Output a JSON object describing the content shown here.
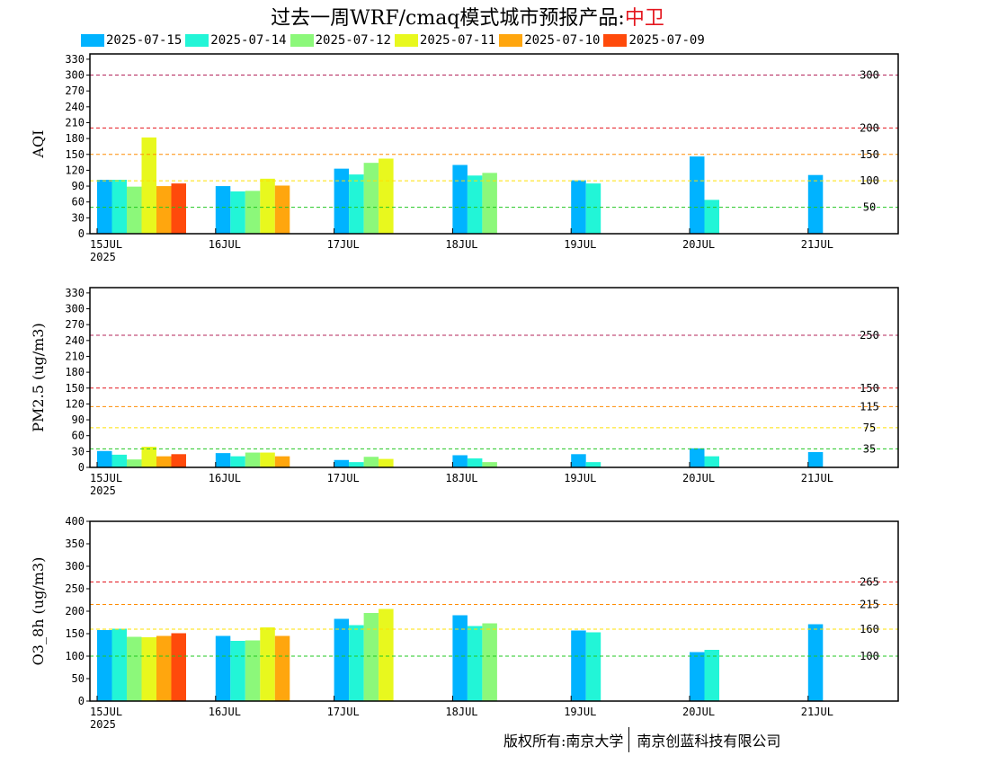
{
  "title": {
    "prefix": "过去一周WRF/cmaq模式城市预报产品:",
    "city": "中卫",
    "city_color": "#e4161e"
  },
  "legend": [
    {
      "name": "2025-07-15",
      "color": "#00b3ff"
    },
    {
      "name": "2025-07-14",
      "color": "#22f5d7"
    },
    {
      "name": "2025-07-12",
      "color": "#8cf87a"
    },
    {
      "name": "2025-07-11",
      "color": "#e8f81e"
    },
    {
      "name": "2025-07-10",
      "color": "#ffa60e"
    },
    {
      "name": "2025-07-09",
      "color": "#ff4a0b"
    }
  ],
  "chart_data": [
    {
      "type": "bar",
      "ylabel": "AQI",
      "ylim": [
        0,
        340
      ],
      "yticks": [
        0,
        30,
        60,
        90,
        120,
        150,
        180,
        210,
        240,
        270,
        300,
        330
      ],
      "categories": [
        "15JUL",
        "16JUL",
        "17JUL",
        "18JUL",
        "19JUL",
        "20JUL",
        "21JUL"
      ],
      "first_category_year": "2025",
      "series": [
        {
          "name": "2025-07-15",
          "values": [
            102,
            90,
            123,
            130,
            101,
            146,
            111
          ]
        },
        {
          "name": "2025-07-14",
          "values": [
            102,
            80,
            112,
            110,
            95,
            64,
            null
          ]
        },
        {
          "name": "2025-07-12",
          "values": [
            89,
            81,
            134,
            115,
            null,
            null,
            null
          ]
        },
        {
          "name": "2025-07-11",
          "values": [
            182,
            104,
            142,
            null,
            null,
            null,
            null
          ]
        },
        {
          "name": "2025-07-10",
          "values": [
            90,
            91,
            null,
            null,
            null,
            null,
            null
          ]
        },
        {
          "name": "2025-07-09",
          "values": [
            95,
            null,
            null,
            null,
            null,
            null,
            null
          ]
        }
      ],
      "reference_lines": [
        {
          "value": 300,
          "label": "300",
          "color": "#b3245a"
        },
        {
          "value": 200,
          "label": "200",
          "color": "#e4161e"
        },
        {
          "value": 150,
          "label": "150",
          "color": "#ff8c00"
        },
        {
          "value": 100,
          "label": "100",
          "color": "#ffe000"
        },
        {
          "value": 50,
          "label": "50",
          "color": "#22c822"
        }
      ]
    },
    {
      "type": "bar",
      "ylabel": "PM2.5 (ug/m3)",
      "ylim": [
        0,
        340
      ],
      "yticks": [
        0,
        30,
        60,
        90,
        120,
        150,
        180,
        210,
        240,
        270,
        300,
        330
      ],
      "categories": [
        "15JUL",
        "16JUL",
        "17JUL",
        "18JUL",
        "19JUL",
        "20JUL",
        "21JUL"
      ],
      "first_category_year": "2025",
      "series": [
        {
          "name": "2025-07-15",
          "values": [
            31,
            27,
            14,
            23,
            25,
            36,
            29
          ]
        },
        {
          "name": "2025-07-14",
          "values": [
            24,
            21,
            10,
            17,
            10,
            21,
            null
          ]
        },
        {
          "name": "2025-07-12",
          "values": [
            15,
            28,
            20,
            10,
            null,
            null,
            null
          ]
        },
        {
          "name": "2025-07-11",
          "values": [
            39,
            28,
            16,
            null,
            null,
            null,
            null
          ]
        },
        {
          "name": "2025-07-10",
          "values": [
            21,
            21,
            null,
            null,
            null,
            null,
            null
          ]
        },
        {
          "name": "2025-07-09",
          "values": [
            25,
            null,
            null,
            null,
            null,
            null,
            null
          ]
        }
      ],
      "reference_lines": [
        {
          "value": 250,
          "label": "250",
          "color": "#b3245a"
        },
        {
          "value": 150,
          "label": "150",
          "color": "#e4161e"
        },
        {
          "value": 115,
          "label": "115",
          "color": "#ff8c00"
        },
        {
          "value": 75,
          "label": "75",
          "color": "#ffe000"
        },
        {
          "value": 35,
          "label": "35",
          "color": "#22c822"
        }
      ]
    },
    {
      "type": "bar",
      "ylabel": "O3_8h (ug/m3)",
      "ylim": [
        0,
        400
      ],
      "yticks": [
        0,
        50,
        100,
        150,
        200,
        250,
        300,
        350,
        400
      ],
      "categories": [
        "15JUL",
        "16JUL",
        "17JUL",
        "18JUL",
        "19JUL",
        "20JUL",
        "21JUL"
      ],
      "first_category_year": "2025",
      "series": [
        {
          "name": "2025-07-15",
          "values": [
            158,
            145,
            183,
            191,
            157,
            109,
            171
          ]
        },
        {
          "name": "2025-07-14",
          "values": [
            161,
            134,
            169,
            167,
            153,
            114,
            null
          ]
        },
        {
          "name": "2025-07-12",
          "values": [
            143,
            135,
            196,
            173,
            null,
            null,
            null
          ]
        },
        {
          "name": "2025-07-11",
          "values": [
            142,
            164,
            205,
            null,
            null,
            null,
            null
          ]
        },
        {
          "name": "2025-07-10",
          "values": [
            145,
            145,
            null,
            null,
            null,
            null,
            null
          ]
        },
        {
          "name": "2025-07-09",
          "values": [
            151,
            null,
            null,
            null,
            null,
            null,
            null
          ]
        }
      ],
      "reference_lines": [
        {
          "value": 265,
          "label": "265",
          "color": "#e4161e"
        },
        {
          "value": 215,
          "label": "215",
          "color": "#ff8c00"
        },
        {
          "value": 160,
          "label": "160",
          "color": "#ffe000"
        },
        {
          "value": 100,
          "label": "100",
          "color": "#22c822"
        }
      ]
    }
  ],
  "copyright": {
    "owner": "版权所有:南京大学",
    "company": "南京创蓝科技有限公司"
  }
}
